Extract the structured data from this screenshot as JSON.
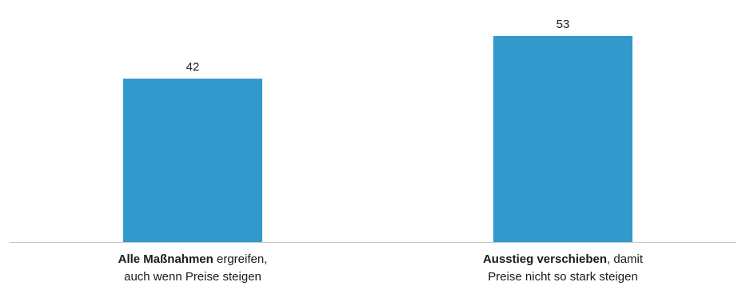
{
  "chart_data": {
    "type": "bar",
    "title": "",
    "xlabel": "",
    "ylabel": "",
    "ylim": [
      0,
      53
    ],
    "categories": [
      {
        "bold": "Alle Maßnahmen",
        "rest": " ergreifen,",
        "line2": "auch wenn Preise steigen"
      },
      {
        "bold": "Ausstieg verschieben",
        "rest": ", damit",
        "line2": "Preise nicht so stark steigen"
      }
    ],
    "values": [
      42,
      53
    ],
    "value_labels": [
      "42",
      "53"
    ],
    "bar_color": "#3399cc",
    "axis_color": "#c8c8c8",
    "grid": false,
    "legend": "none"
  }
}
